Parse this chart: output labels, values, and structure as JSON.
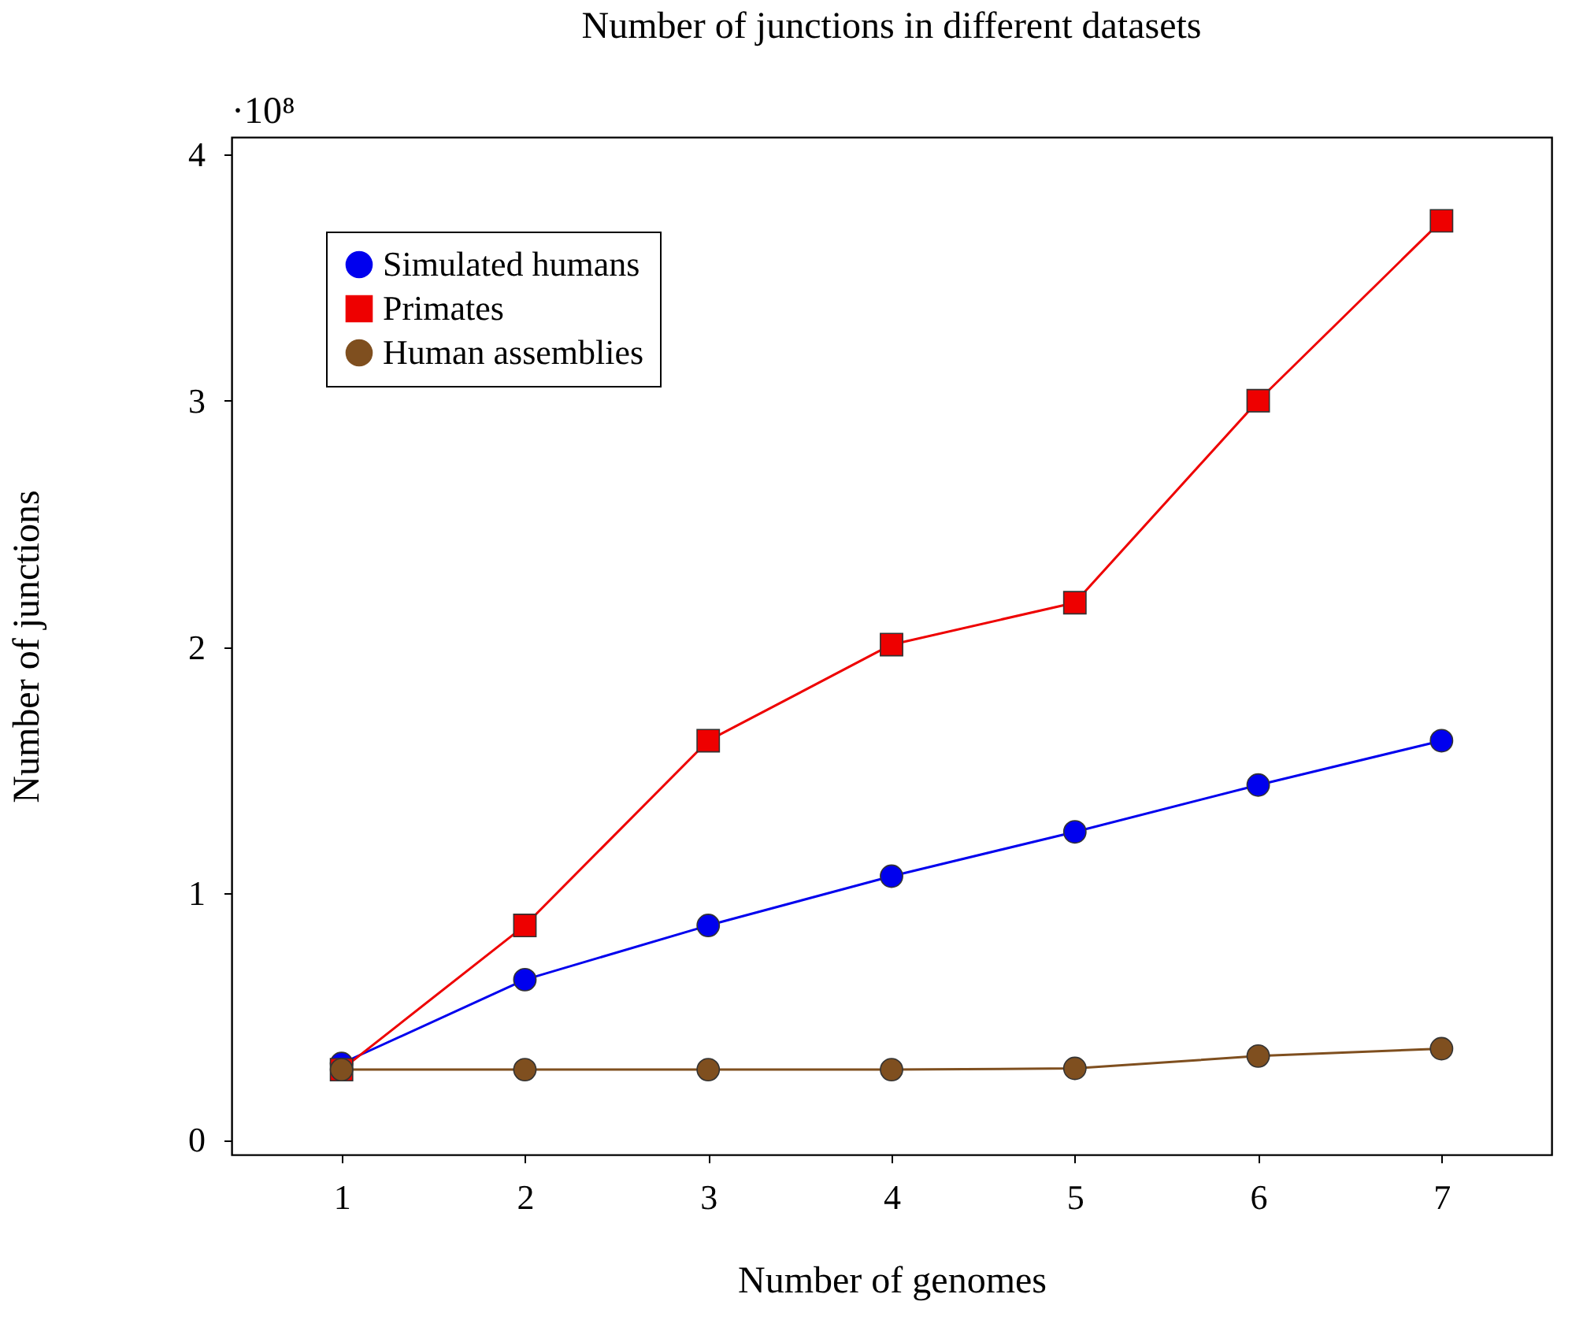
{
  "chart_data": {
    "type": "line",
    "title": "Number of junctions in different datasets",
    "xlabel": "Number of genomes",
    "ylabel": "Number of junctions",
    "annotations": [
      "·10⁸"
    ],
    "x": [
      1,
      2,
      3,
      4,
      5,
      6,
      7
    ],
    "series": [
      {
        "name": "Simulated humans",
        "color": "#0000ee",
        "marker": "circle",
        "values": [
          0.31,
          0.65,
          0.87,
          1.07,
          1.25,
          1.44,
          1.62
        ]
      },
      {
        "name": "Primates",
        "color": "#ee0000",
        "marker": "square",
        "values": [
          0.285,
          0.87,
          1.62,
          2.01,
          2.18,
          3.0,
          3.73
        ]
      },
      {
        "name": "Human assemblies",
        "color": "#7f4f1f",
        "marker": "circle",
        "values": [
          0.285,
          0.285,
          0.285,
          0.285,
          0.29,
          0.34,
          0.37
        ]
      }
    ],
    "xlim": [
      0.4,
      7.6
    ],
    "ylim": [
      -0.06,
      4.07
    ],
    "xticks": [
      1,
      2,
      3,
      4,
      5,
      6,
      7
    ],
    "yticks": [
      0,
      1,
      2,
      3,
      4
    ],
    "grid": false,
    "legend": "top left",
    "line_style": "solid"
  }
}
